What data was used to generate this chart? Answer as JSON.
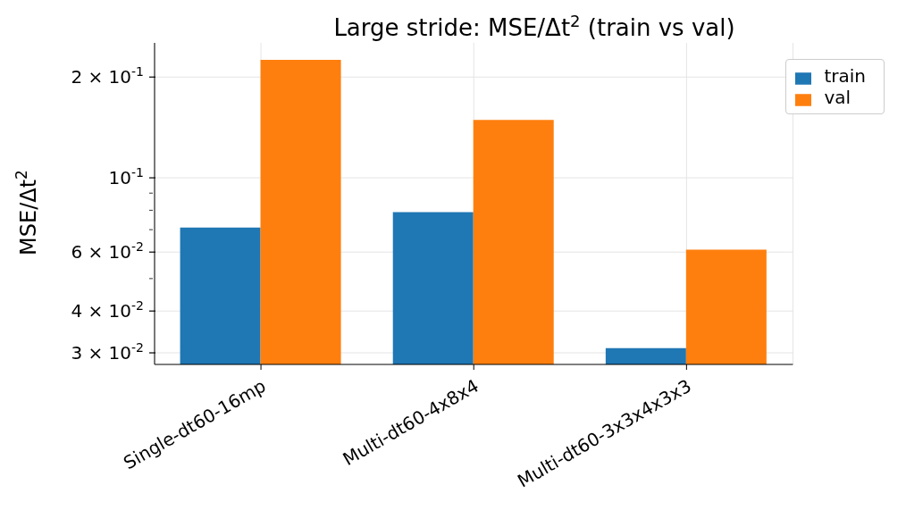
{
  "chart_data": {
    "type": "bar",
    "title": "Large stride: MSE/Δt$^{2}$ (train vs val)",
    "ylabel": "MSE/Δt$^{2}$",
    "categories": [
      "Single-dt60-16mp",
      "Multi-dt60-4x8x4",
      "Multi-dt60-3x3x4x3x3"
    ],
    "series": [
      {
        "name": "train",
        "color": "#1f77b4",
        "values": [
          0.071,
          0.079,
          0.031
        ]
      },
      {
        "name": "val",
        "color": "#ff7f0e",
        "values": [
          0.225,
          0.149,
          0.061
        ]
      }
    ],
    "log": true,
    "ylim": [
      0.0277,
      0.253
    ],
    "yticks": [
      {
        "value": 0.03,
        "label": "3 × 10$^{-2}$"
      },
      {
        "value": 0.04,
        "label": "4 × 10$^{-2}$"
      },
      {
        "value": 0.05,
        "label": null
      },
      {
        "value": 0.06,
        "label": "6 × 10$^{-2}$"
      },
      {
        "value": 0.07,
        "label": null
      },
      {
        "value": 0.08,
        "label": null
      },
      {
        "value": 0.09,
        "label": null
      },
      {
        "value": 0.1,
        "label": "10$^{-1}$"
      },
      {
        "value": 0.2,
        "label": "2 × 10$^{-1}$"
      }
    ],
    "grid": true,
    "legend": "top right"
  }
}
